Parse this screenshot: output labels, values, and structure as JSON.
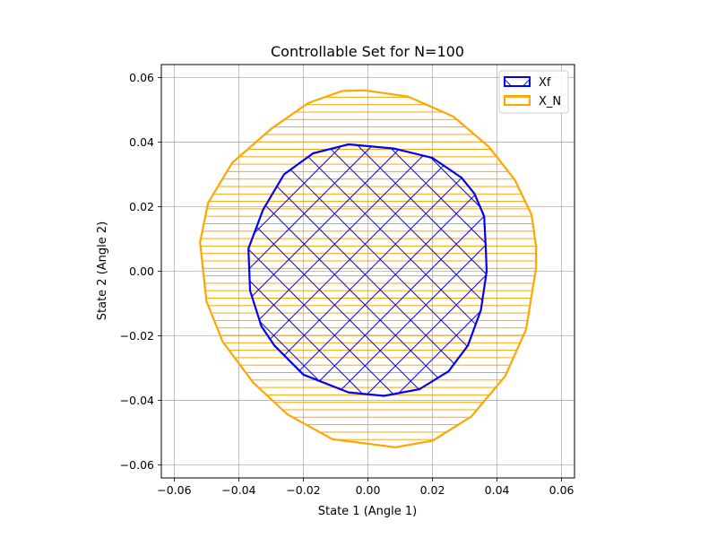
{
  "chart_data": {
    "type": "area",
    "title": "Controllable Set for N=100",
    "xlabel": "State 1 (Angle 1)",
    "ylabel": "State 2 (Angle 2)",
    "xlim": [
      -0.064,
      0.064
    ],
    "ylim": [
      -0.064,
      0.064
    ],
    "xticks": [
      "−0.06",
      "−0.04",
      "−0.02",
      "0.00",
      "0.02",
      "0.04",
      "0.06"
    ],
    "yticks": [
      "−0.06",
      "−0.04",
      "−0.02",
      "0.00",
      "0.02",
      "0.04",
      "0.06"
    ],
    "xtick_values": [
      -0.06,
      -0.04,
      -0.02,
      0.0,
      0.02,
      0.04,
      0.06
    ],
    "ytick_values": [
      -0.06,
      -0.04,
      -0.02,
      0.0,
      0.02,
      0.04,
      0.06
    ],
    "grid": true,
    "legend_position": "top-right",
    "series": [
      {
        "name": "X_N",
        "color": "#ffa500",
        "hatch": "horizontal",
        "boundary": [
          [
            0.0521,
            0.0078
          ],
          [
            0.0507,
            0.0175
          ],
          [
            0.0455,
            0.0283
          ],
          [
            0.0375,
            0.0385
          ],
          [
            0.0265,
            0.0479
          ],
          [
            0.0125,
            0.0541
          ],
          [
            -0.001,
            0.056
          ],
          [
            -0.008,
            0.0558
          ],
          [
            -0.0185,
            0.0521
          ],
          [
            -0.03,
            0.0441
          ],
          [
            -0.042,
            0.0336
          ],
          [
            -0.0495,
            0.0212
          ],
          [
            -0.052,
            0.009
          ],
          [
            -0.05,
            -0.0093
          ],
          [
            -0.045,
            -0.0218
          ],
          [
            -0.0355,
            -0.0345
          ],
          [
            -0.025,
            -0.0443
          ],
          [
            -0.011,
            -0.052
          ],
          [
            0.0085,
            -0.0545
          ],
          [
            0.02,
            -0.0525
          ],
          [
            0.032,
            -0.045
          ],
          [
            0.0425,
            -0.0325
          ],
          [
            0.049,
            -0.018
          ],
          [
            0.0521,
            0.001
          ]
        ]
      },
      {
        "name": "Xf",
        "color": "#0000ff",
        "hatch": "crosshatch",
        "boundary": [
          [
            0.0365,
            0.0072
          ],
          [
            0.036,
            0.017
          ],
          [
            0.033,
            0.024
          ],
          [
            0.029,
            0.029
          ],
          [
            0.02,
            0.0351
          ],
          [
            0.008,
            0.038
          ],
          [
            -0.006,
            0.0393
          ],
          [
            -0.017,
            0.0365
          ],
          [
            -0.026,
            0.03
          ],
          [
            -0.0325,
            0.019
          ],
          [
            -0.037,
            0.007
          ],
          [
            -0.0365,
            -0.006
          ],
          [
            -0.033,
            -0.017
          ],
          [
            -0.029,
            -0.023
          ],
          [
            -0.02,
            -0.032
          ],
          [
            -0.006,
            -0.0375
          ],
          [
            0.005,
            -0.0386
          ],
          [
            0.016,
            -0.0365
          ],
          [
            0.025,
            -0.031
          ],
          [
            0.031,
            -0.023
          ],
          [
            0.035,
            -0.012
          ],
          [
            0.0368,
            0.0
          ]
        ]
      }
    ]
  }
}
